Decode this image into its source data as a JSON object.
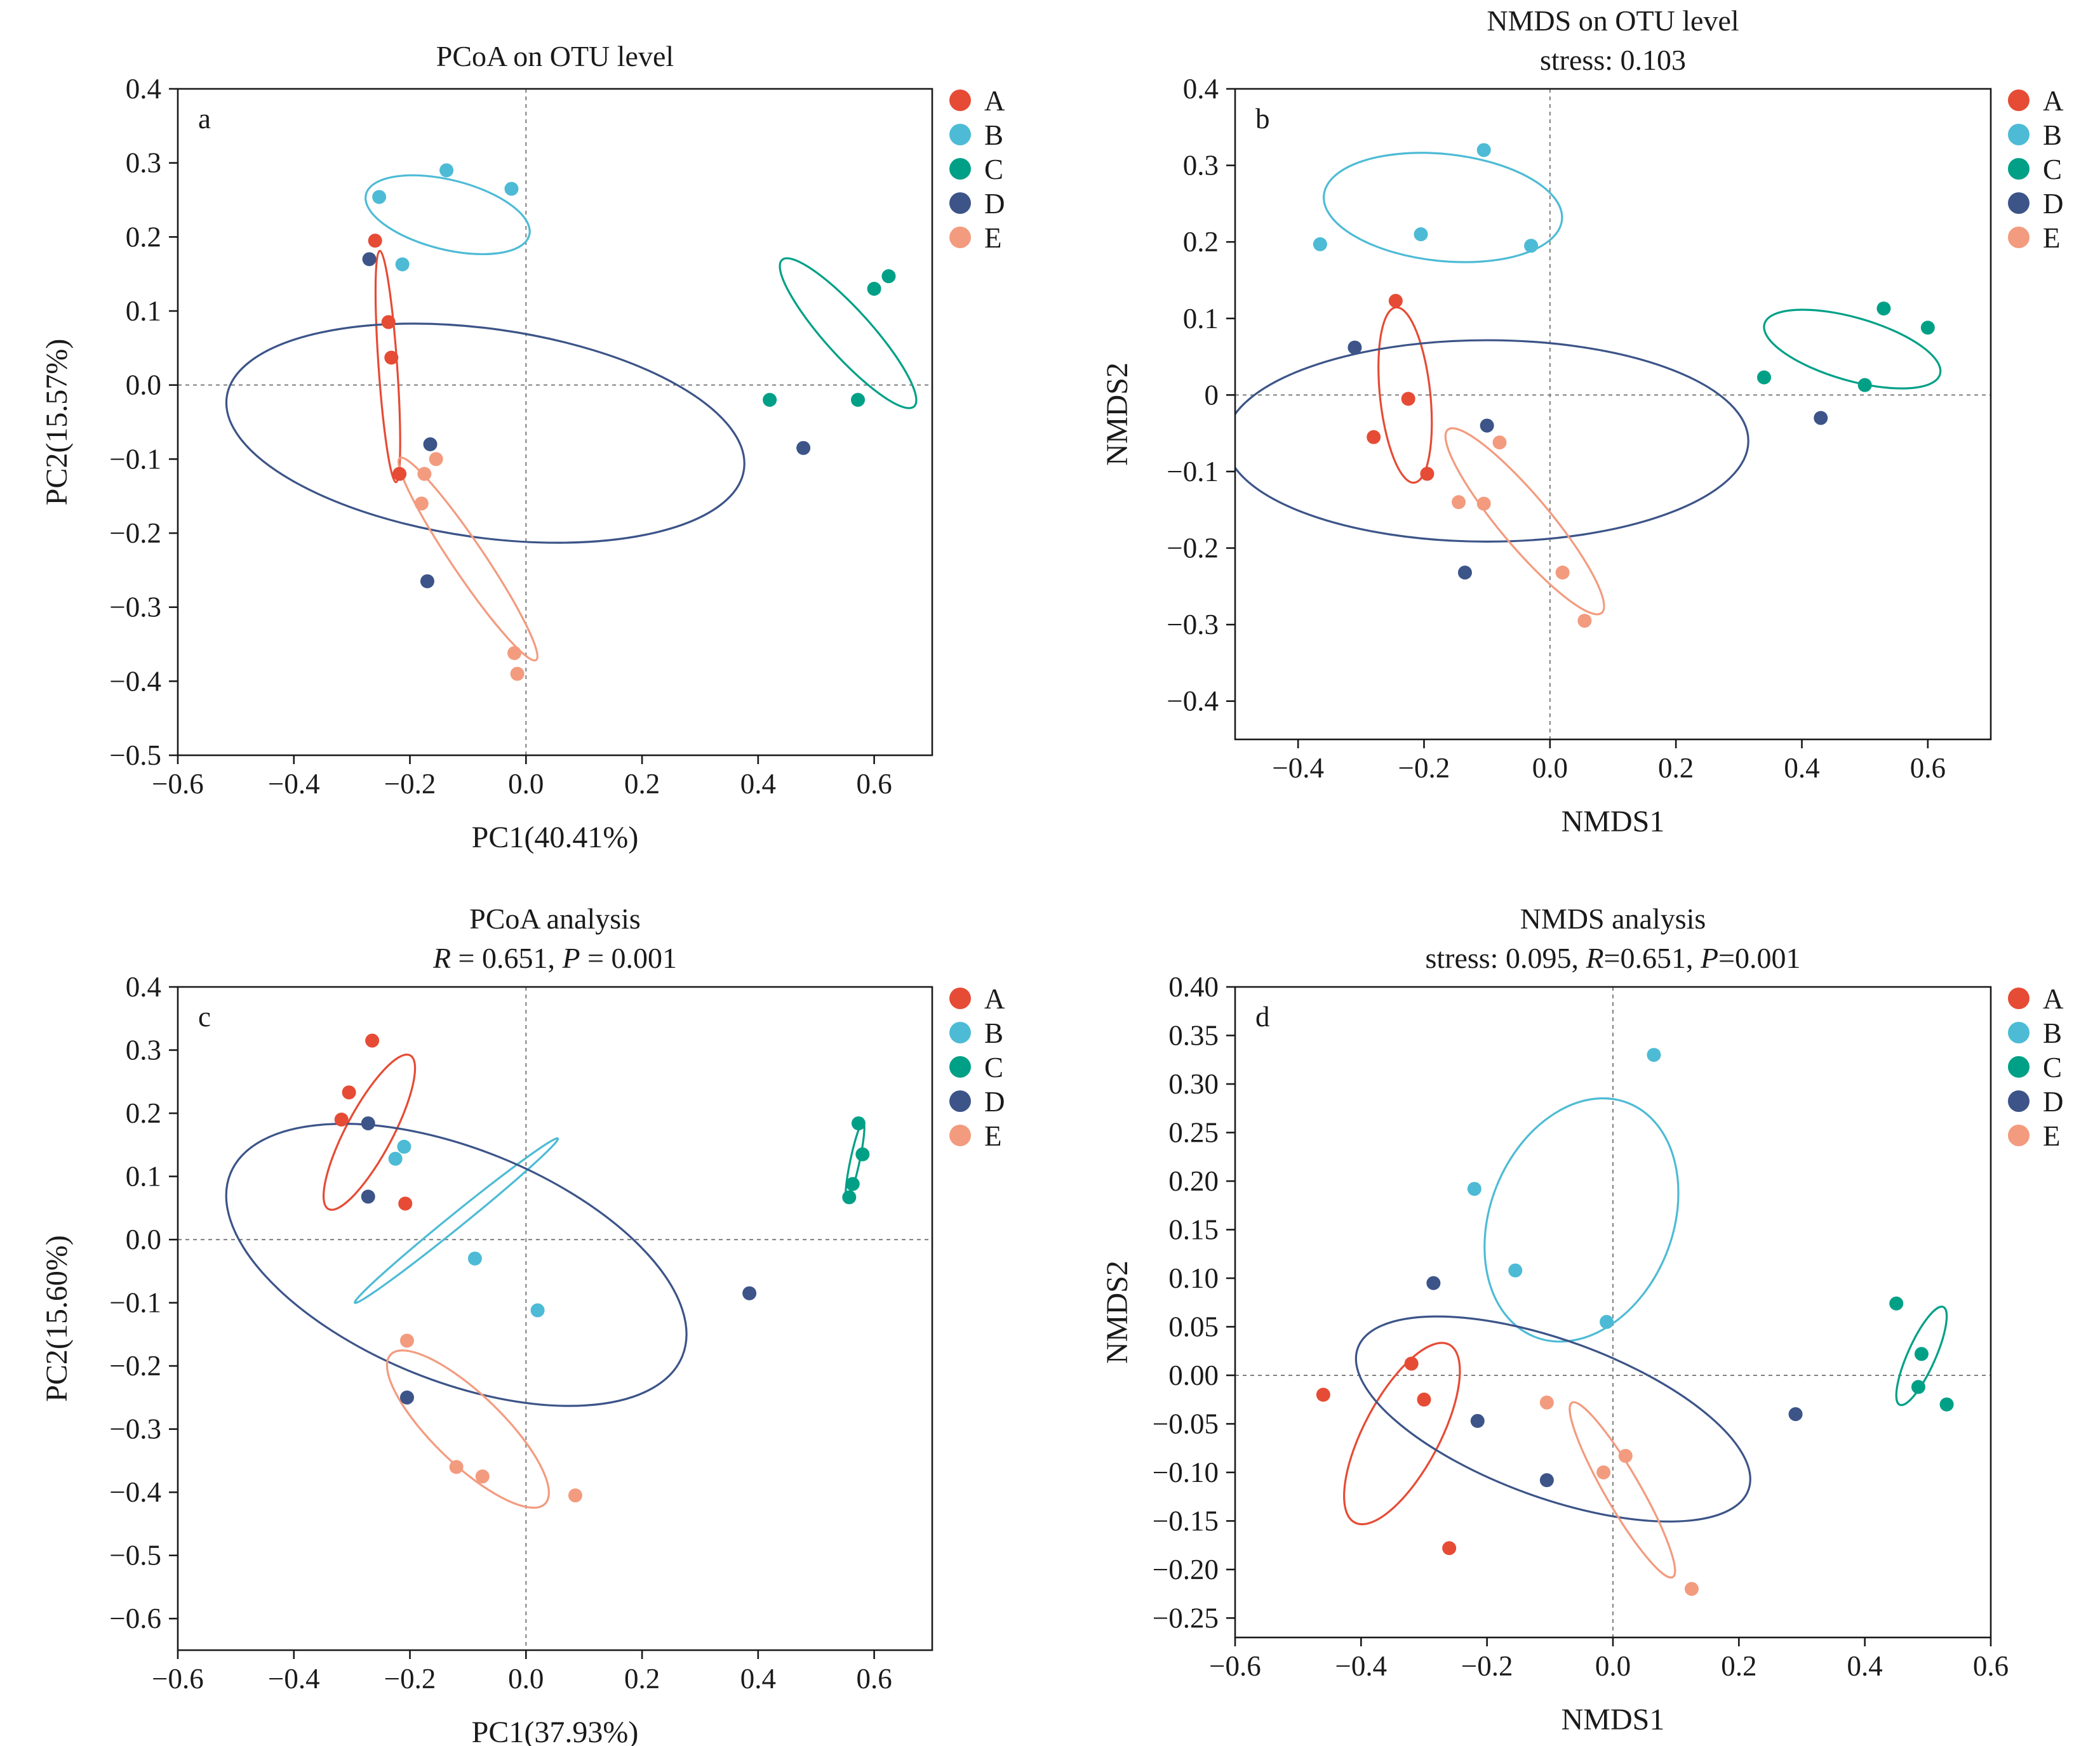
{
  "groups": [
    {
      "name": "A",
      "color": "#E64B35"
    },
    {
      "name": "B",
      "color": "#4DBBD5"
    },
    {
      "name": "C",
      "color": "#00A087"
    },
    {
      "name": "D",
      "color": "#3C5488"
    },
    {
      "name": "E",
      "color": "#F39B7F"
    }
  ],
  "chart_data": [
    {
      "type": "scatter",
      "panel_letter": "a",
      "title": "PCoA on OTU level",
      "subtitle": "",
      "xlabel": "PC1(40.41%)",
      "ylabel": "PC2(15.57%)",
      "xlim": [
        -0.6,
        0.7
      ],
      "ylim": [
        -0.5,
        0.4
      ],
      "xticks": [
        -0.6,
        -0.4,
        -0.2,
        0.0,
        0.2,
        0.4,
        0.6
      ],
      "yticks": [
        0.4,
        0.3,
        0.2,
        0.1,
        0.0,
        -0.1,
        -0.2,
        -0.3,
        -0.4,
        -0.5
      ],
      "xtick_labels": [
        "−0.6",
        "−0.4",
        "−0.2",
        "0.0",
        "0.2",
        "0.4",
        "0.6"
      ],
      "ytick_labels": [
        "0.4",
        "0.3",
        "0.2",
        "0.1",
        "0.0",
        "−0.1",
        "−0.2",
        "−0.3",
        "−0.4",
        "−0.5"
      ],
      "reference_lines": {
        "x": 0,
        "y": 0
      },
      "legend_position": "right",
      "series": [
        {
          "name": "A",
          "points": [
            [
              -0.26,
              0.195
            ],
            [
              -0.237,
              0.085
            ],
            [
              -0.232,
              0.037
            ],
            [
              -0.218,
              -0.12
            ]
          ]
        },
        {
          "name": "B",
          "points": [
            [
              -0.253,
              0.254
            ],
            [
              -0.137,
              0.29
            ],
            [
              -0.025,
              0.265
            ],
            [
              -0.213,
              0.163
            ]
          ]
        },
        {
          "name": "C",
          "points": [
            [
              0.42,
              -0.02
            ],
            [
              0.572,
              -0.02
            ],
            [
              0.6,
              0.13
            ],
            [
              0.625,
              0.147
            ]
          ]
        },
        {
          "name": "D",
          "points": [
            [
              -0.27,
              0.17
            ],
            [
              -0.165,
              -0.08
            ],
            [
              -0.17,
              -0.265
            ],
            [
              0.478,
              -0.085
            ]
          ]
        },
        {
          "name": "E",
          "points": [
            [
              -0.175,
              -0.12
            ],
            [
              -0.155,
              -0.1
            ],
            [
              -0.18,
              -0.16
            ],
            [
              -0.02,
              -0.362
            ],
            [
              -0.015,
              -0.39
            ]
          ]
        }
      ],
      "ellipses": [
        {
          "group": "A",
          "center": [
            -0.238,
            0.025
          ],
          "rx": 0.016,
          "ry": 0.2,
          "angle": 4
        },
        {
          "group": "B",
          "center": [
            -0.135,
            0.23
          ],
          "rx": 0.145,
          "ry": 0.06,
          "angle": -14
        },
        {
          "group": "C",
          "center": [
            0.555,
            0.07
          ],
          "rx": 0.17,
          "ry": 0.04,
          "angle": -48
        },
        {
          "group": "D",
          "center": [
            -0.07,
            -0.065
          ],
          "rx": 0.45,
          "ry": 0.18,
          "angle": -8
        },
        {
          "group": "E",
          "center": [
            -0.1,
            -0.235
          ],
          "rx": 0.21,
          "ry": 0.028,
          "angle": -56
        }
      ]
    },
    {
      "type": "scatter",
      "panel_letter": "b",
      "title": "NMDS on OTU level",
      "subtitle": "stress: 0.103",
      "xlabel": "NMDS1",
      "ylabel": "NMDS2",
      "xlim": [
        -0.5,
        0.7
      ],
      "ylim": [
        -0.45,
        0.4
      ],
      "xticks": [
        -0.4,
        -0.2,
        0.0,
        0.2,
        0.4,
        0.6
      ],
      "yticks": [
        0.4,
        0.3,
        0.2,
        0.1,
        0,
        -0.1,
        -0.2,
        -0.3,
        -0.4
      ],
      "xtick_labels": [
        "−0.4",
        "−0.2",
        "0.0",
        "0.2",
        "0.4",
        "0.6"
      ],
      "ytick_labels": [
        "0.4",
        "0.3",
        "0.2",
        "0.1",
        "0",
        "−0.1",
        "−0.2",
        "−0.3",
        "−0.4"
      ],
      "reference_lines": {
        "x": 0,
        "y": 0
      },
      "legend_position": "right",
      "series": [
        {
          "name": "A",
          "points": [
            [
              -0.245,
              0.123
            ],
            [
              -0.225,
              -0.005
            ],
            [
              -0.28,
              -0.055
            ],
            [
              -0.195,
              -0.103
            ]
          ]
        },
        {
          "name": "B",
          "points": [
            [
              -0.365,
              0.197
            ],
            [
              -0.105,
              0.32
            ],
            [
              -0.205,
              0.21
            ],
            [
              -0.03,
              0.195
            ]
          ]
        },
        {
          "name": "C",
          "points": [
            [
              0.34,
              0.023
            ],
            [
              0.5,
              0.013
            ],
            [
              0.53,
              0.113
            ],
            [
              0.6,
              0.088
            ]
          ]
        },
        {
          "name": "D",
          "points": [
            [
              -0.31,
              0.062
            ],
            [
              -0.1,
              -0.04
            ],
            [
              -0.135,
              -0.232
            ],
            [
              0.43,
              -0.03
            ]
          ]
        },
        {
          "name": "E",
          "points": [
            [
              -0.145,
              -0.14
            ],
            [
              -0.105,
              -0.142
            ],
            [
              -0.08,
              -0.062
            ],
            [
              0.02,
              -0.232
            ],
            [
              0.055,
              -0.295
            ]
          ]
        }
      ],
      "ellipses": [
        {
          "group": "A",
          "center": [
            -0.23,
            0.0
          ],
          "rx": 0.04,
          "ry": 0.14,
          "angle": 6
        },
        {
          "group": "B",
          "center": [
            -0.17,
            0.245
          ],
          "rx": 0.19,
          "ry": 0.085,
          "angle": -6
        },
        {
          "group": "C",
          "center": [
            0.48,
            0.06
          ],
          "rx": 0.145,
          "ry": 0.05,
          "angle": -16
        },
        {
          "group": "D",
          "center": [
            -0.1,
            -0.06
          ],
          "rx": 0.415,
          "ry": 0.16,
          "angle": 0
        },
        {
          "group": "E",
          "center": [
            -0.04,
            -0.165
          ],
          "rx": 0.19,
          "ry": 0.04,
          "angle": -50
        }
      ]
    },
    {
      "type": "scatter",
      "panel_letter": "c",
      "title": "PCoA analysis",
      "subtitle_parts": [
        {
          "text": "R",
          "italic": true
        },
        {
          "text": " = 0.651, ",
          "italic": false
        },
        {
          "text": "P",
          "italic": true
        },
        {
          "text": " = 0.001",
          "italic": false
        }
      ],
      "xlabel": "PC1(37.93%)",
      "ylabel": "PC2(15.60%)",
      "xlim": [
        -0.6,
        0.7
      ],
      "ylim": [
        -0.65,
        0.4
      ],
      "xticks": [
        -0.6,
        -0.4,
        -0.2,
        0.0,
        0.2,
        0.4,
        0.6
      ],
      "yticks": [
        0.4,
        0.3,
        0.2,
        0.1,
        0.0,
        -0.1,
        -0.2,
        -0.3,
        -0.4,
        -0.5,
        -0.6
      ],
      "xtick_labels": [
        "−0.6",
        "−0.4",
        "−0.2",
        "0.0",
        "0.2",
        "0.4",
        "0.6"
      ],
      "ytick_labels": [
        "0.4",
        "0.3",
        "0.2",
        "0.1",
        "0.0",
        "−0.1",
        "−0.2",
        "−0.3",
        "−0.4",
        "−0.5",
        "−0.6"
      ],
      "reference_lines": {
        "x": 0,
        "y": 0
      },
      "legend_position": "right",
      "series": [
        {
          "name": "A",
          "points": [
            [
              -0.265,
              0.315
            ],
            [
              -0.305,
              0.233
            ],
            [
              -0.318,
              0.19
            ],
            [
              -0.208,
              0.057
            ]
          ]
        },
        {
          "name": "B",
          "points": [
            [
              -0.21,
              0.147
            ],
            [
              -0.225,
              0.128
            ],
            [
              -0.088,
              -0.03
            ],
            [
              0.02,
              -0.112
            ]
          ]
        },
        {
          "name": "C",
          "points": [
            [
              0.573,
              0.184
            ],
            [
              0.58,
              0.135
            ],
            [
              0.563,
              0.088
            ],
            [
              0.557,
              0.067
            ]
          ]
        },
        {
          "name": "D",
          "points": [
            [
              -0.272,
              0.184
            ],
            [
              -0.272,
              0.068
            ],
            [
              -0.205,
              -0.25
            ],
            [
              0.385,
              -0.085
            ]
          ]
        },
        {
          "name": "E",
          "points": [
            [
              -0.205,
              -0.16
            ],
            [
              -0.12,
              -0.36
            ],
            [
              -0.075,
              -0.375
            ],
            [
              0.085,
              -0.405
            ]
          ]
        }
      ],
      "ellipses": [
        {
          "group": "A",
          "center": [
            -0.27,
            0.17
          ],
          "rx": 0.15,
          "ry": 0.04,
          "angle": 62
        },
        {
          "group": "B",
          "center": [
            -0.12,
            0.03
          ],
          "rx": 0.225,
          "ry": 0.012,
          "angle": 39
        },
        {
          "group": "C",
          "center": [
            0.567,
            0.125
          ],
          "rx": 0.068,
          "ry": 0.008,
          "angle": 78
        },
        {
          "group": "D",
          "center": [
            -0.12,
            -0.04
          ],
          "rx": 0.42,
          "ry": 0.2,
          "angle": -22
        },
        {
          "group": "E",
          "center": [
            -0.1,
            -0.3
          ],
          "rx": 0.185,
          "ry": 0.06,
          "angle": -44
        }
      ]
    },
    {
      "type": "scatter",
      "panel_letter": "d",
      "title": "NMDS analysis",
      "subtitle_parts": [
        {
          "text": "stress: 0.095, ",
          "italic": false
        },
        {
          "text": "R",
          "italic": true
        },
        {
          "text": "=0.651, ",
          "italic": false
        },
        {
          "text": "P",
          "italic": true
        },
        {
          "text": "=0.001",
          "italic": false
        }
      ],
      "xlabel": "NMDS1",
      "ylabel": "NMDS2",
      "xlim": [
        -0.6,
        0.6
      ],
      "ylim": [
        -0.27,
        0.4
      ],
      "xticks": [
        -0.6,
        -0.4,
        -0.2,
        0.0,
        0.2,
        0.4,
        0.6
      ],
      "yticks": [
        0.4,
        0.35,
        0.3,
        0.25,
        0.2,
        0.15,
        0.1,
        0.05,
        0.0,
        -0.05,
        -0.1,
        -0.15,
        -0.2,
        -0.25
      ],
      "xtick_labels": [
        "−0.6",
        "−0.4",
        "−0.2",
        "0.0",
        "0.2",
        "0.4",
        "0.6"
      ],
      "ytick_labels": [
        "0.40",
        "0.35",
        "0.30",
        "0.25",
        "0.20",
        "0.15",
        "0.10",
        "0.05",
        "0.00",
        "−0.05",
        "−0.10",
        "−0.15",
        "−0.20",
        "−0.25"
      ],
      "reference_lines": {
        "x": 0,
        "y": 0
      },
      "legend_position": "right",
      "series": [
        {
          "name": "A",
          "points": [
            [
              -0.46,
              -0.02
            ],
            [
              -0.32,
              0.012
            ],
            [
              -0.3,
              -0.025
            ],
            [
              -0.26,
              -0.178
            ]
          ]
        },
        {
          "name": "B",
          "points": [
            [
              0.065,
              0.33
            ],
            [
              -0.22,
              0.192
            ],
            [
              -0.155,
              0.108
            ],
            [
              -0.01,
              0.055
            ]
          ]
        },
        {
          "name": "C",
          "points": [
            [
              0.45,
              0.074
            ],
            [
              0.49,
              0.022
            ],
            [
              0.485,
              -0.012
            ],
            [
              0.53,
              -0.03
            ]
          ]
        },
        {
          "name": "D",
          "points": [
            [
              -0.285,
              0.095
            ],
            [
              -0.215,
              -0.047
            ],
            [
              -0.105,
              -0.108
            ],
            [
              0.29,
              -0.04
            ]
          ]
        },
        {
          "name": "E",
          "points": [
            [
              -0.105,
              -0.028
            ],
            [
              0.02,
              -0.083
            ],
            [
              -0.015,
              -0.1
            ],
            [
              0.125,
              -0.22
            ]
          ]
        }
      ],
      "ellipses": [
        {
          "group": "A",
          "center": [
            -0.335,
            -0.06
          ],
          "rx": 0.16,
          "ry": 0.06,
          "angle": 62
        },
        {
          "group": "B",
          "center": [
            -0.05,
            0.16
          ],
          "rx": 0.2,
          "ry": 0.145,
          "angle": 68
        },
        {
          "group": "C",
          "center": [
            0.49,
            0.02
          ],
          "rx": 0.085,
          "ry": 0.022,
          "angle": 66
        },
        {
          "group": "D",
          "center": [
            -0.095,
            -0.045
          ],
          "rx": 0.33,
          "ry": 0.125,
          "angle": -20
        },
        {
          "group": "E",
          "center": [
            0.015,
            -0.118
          ],
          "rx": 0.16,
          "ry": 0.028,
          "angle": -60
        }
      ]
    }
  ]
}
